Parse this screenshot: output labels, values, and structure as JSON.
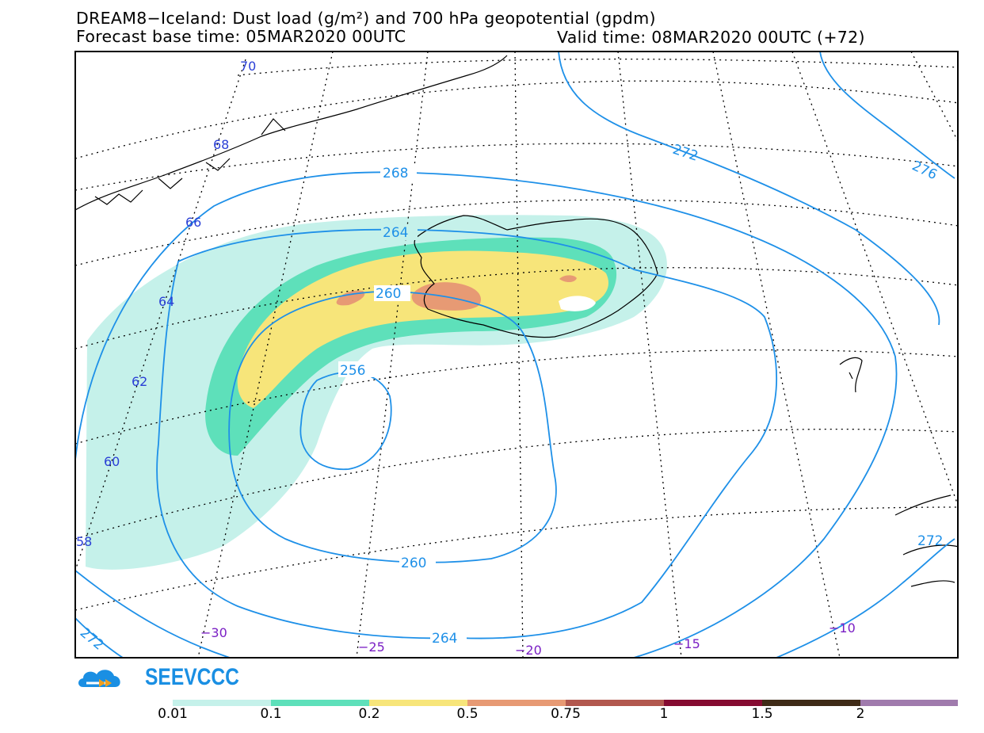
{
  "header": {
    "title": "DREAM8−Iceland: Dust load (g/m²) and 700 hPa geopotential (gpdm)",
    "base_time": "Forecast base time: 05MAR2020 00UTC",
    "valid_time": "Valid time: 08MAR2020 00UTC (+72)"
  },
  "map": {
    "lat_labels": [
      "70",
      "68",
      "66",
      "64",
      "62",
      "60",
      "58"
    ],
    "lon_labels": [
      "−30",
      "−25",
      "−20",
      "−15",
      "−10"
    ],
    "contour_labels": [
      "268",
      "264",
      "260",
      "256",
      "260",
      "264",
      "272",
      "276",
      "272",
      "272"
    ],
    "colors": {
      "lat_label": "#2a3fd6",
      "lon_label": "#7a1fc4",
      "contour": "#1e90e8"
    }
  },
  "logo": {
    "text": "SEEVCCC",
    "color": "#1a8fe3"
  },
  "colorbar": {
    "labels": [
      "0.01",
      "0.1",
      "0.2",
      "0.5",
      "0.75",
      "1",
      "1.5",
      "2"
    ],
    "colors": [
      "#c5f1ea",
      "#5ee0ba",
      "#f7e57a",
      "#e79a74",
      "#b2584e",
      "#850b31",
      "#3f2b17",
      "#a07bad"
    ]
  }
}
